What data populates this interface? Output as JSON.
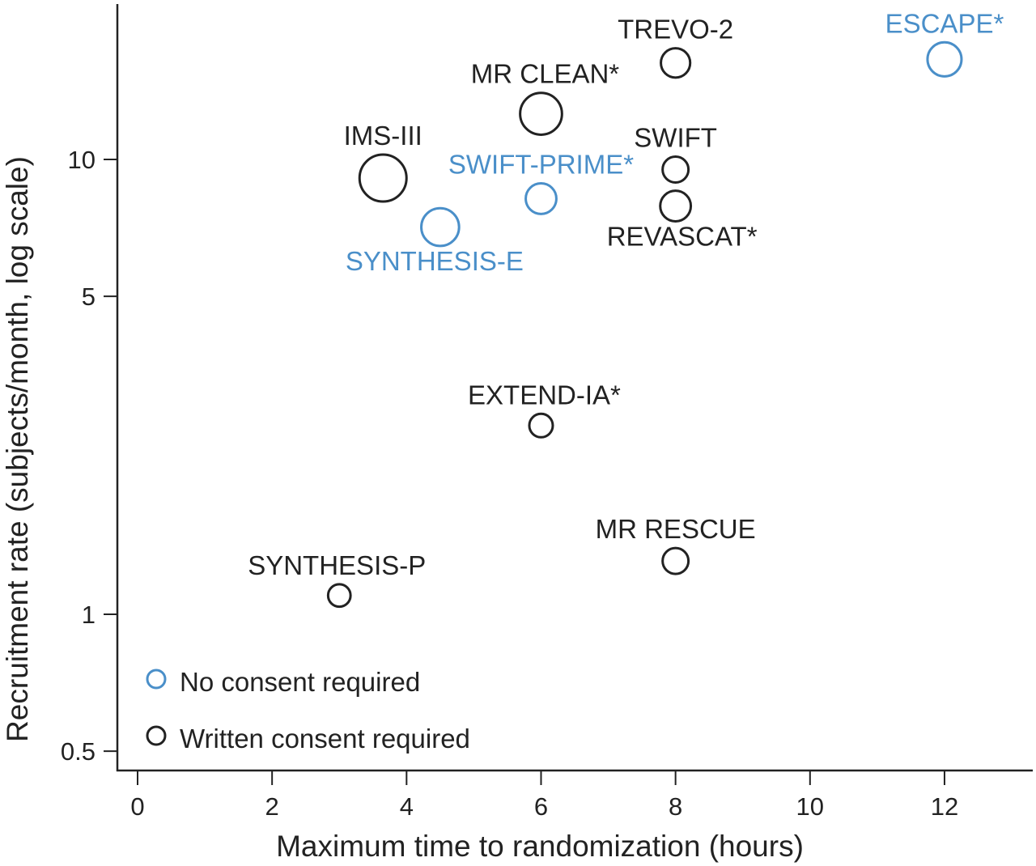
{
  "chart_data": {
    "type": "scatter",
    "title": "",
    "xlabel": "Maximum time to randomization (hours)",
    "ylabel": "Recruitment rate (subjects/month, log scale)",
    "xlim": [
      -0.3,
      13.2
    ],
    "ylim": [
      0.45,
      24
    ],
    "yscale": "log",
    "grid": false,
    "x_ticks": [
      0,
      2,
      4,
      6,
      8,
      10,
      12
    ],
    "y_ticks": [
      0.5,
      1,
      5,
      10
    ],
    "legend": {
      "placement": "bottom-left",
      "entries": [
        {
          "label": "No consent required",
          "color": "#4a8fc9"
        },
        {
          "label": "Written consent required",
          "color": "#222222"
        }
      ]
    },
    "points": [
      {
        "label": "ESCAPE*",
        "x": 12,
        "y": 16.6,
        "group": "No consent required",
        "relative_size": 0.62,
        "label_pos": "above"
      },
      {
        "label": "TREVO-2",
        "x": 8,
        "y": 16.3,
        "group": "Written consent required",
        "relative_size": 0.48,
        "label_pos": "above"
      },
      {
        "label": "MR CLEAN*",
        "x": 6,
        "y": 12.6,
        "group": "Written consent required",
        "relative_size": 0.85,
        "label_pos": "above"
      },
      {
        "label": "IMS-III",
        "x": 3.65,
        "y": 9.1,
        "group": "Written consent required",
        "relative_size": 1.0,
        "label_pos": "above"
      },
      {
        "label": "SWIFT",
        "x": 8,
        "y": 9.5,
        "group": "Written consent required",
        "relative_size": 0.38,
        "label_pos": "above"
      },
      {
        "label": "SWIFT-PRIME*",
        "x": 6,
        "y": 8.2,
        "group": "No consent required",
        "relative_size": 0.52,
        "label_pos": "above"
      },
      {
        "label": "REVASCAT*",
        "x": 8,
        "y": 7.9,
        "group": "Written consent required",
        "relative_size": 0.52,
        "label_pos": "below"
      },
      {
        "label": "SYNTHESIS-E",
        "x": 4.5,
        "y": 7.1,
        "group": "No consent required",
        "relative_size": 0.73,
        "label_pos": "below"
      },
      {
        "label": "EXTEND-IA*",
        "x": 6,
        "y": 2.6,
        "group": "Written consent required",
        "relative_size": 0.31,
        "label_pos": "above"
      },
      {
        "label": "MR RESCUE",
        "x": 8,
        "y": 1.31,
        "group": "Written consent required",
        "relative_size": 0.38,
        "label_pos": "above"
      },
      {
        "label": "SYNTHESIS-P",
        "x": 3,
        "y": 1.1,
        "group": "Written consent required",
        "relative_size": 0.28,
        "label_pos": "above"
      }
    ]
  }
}
